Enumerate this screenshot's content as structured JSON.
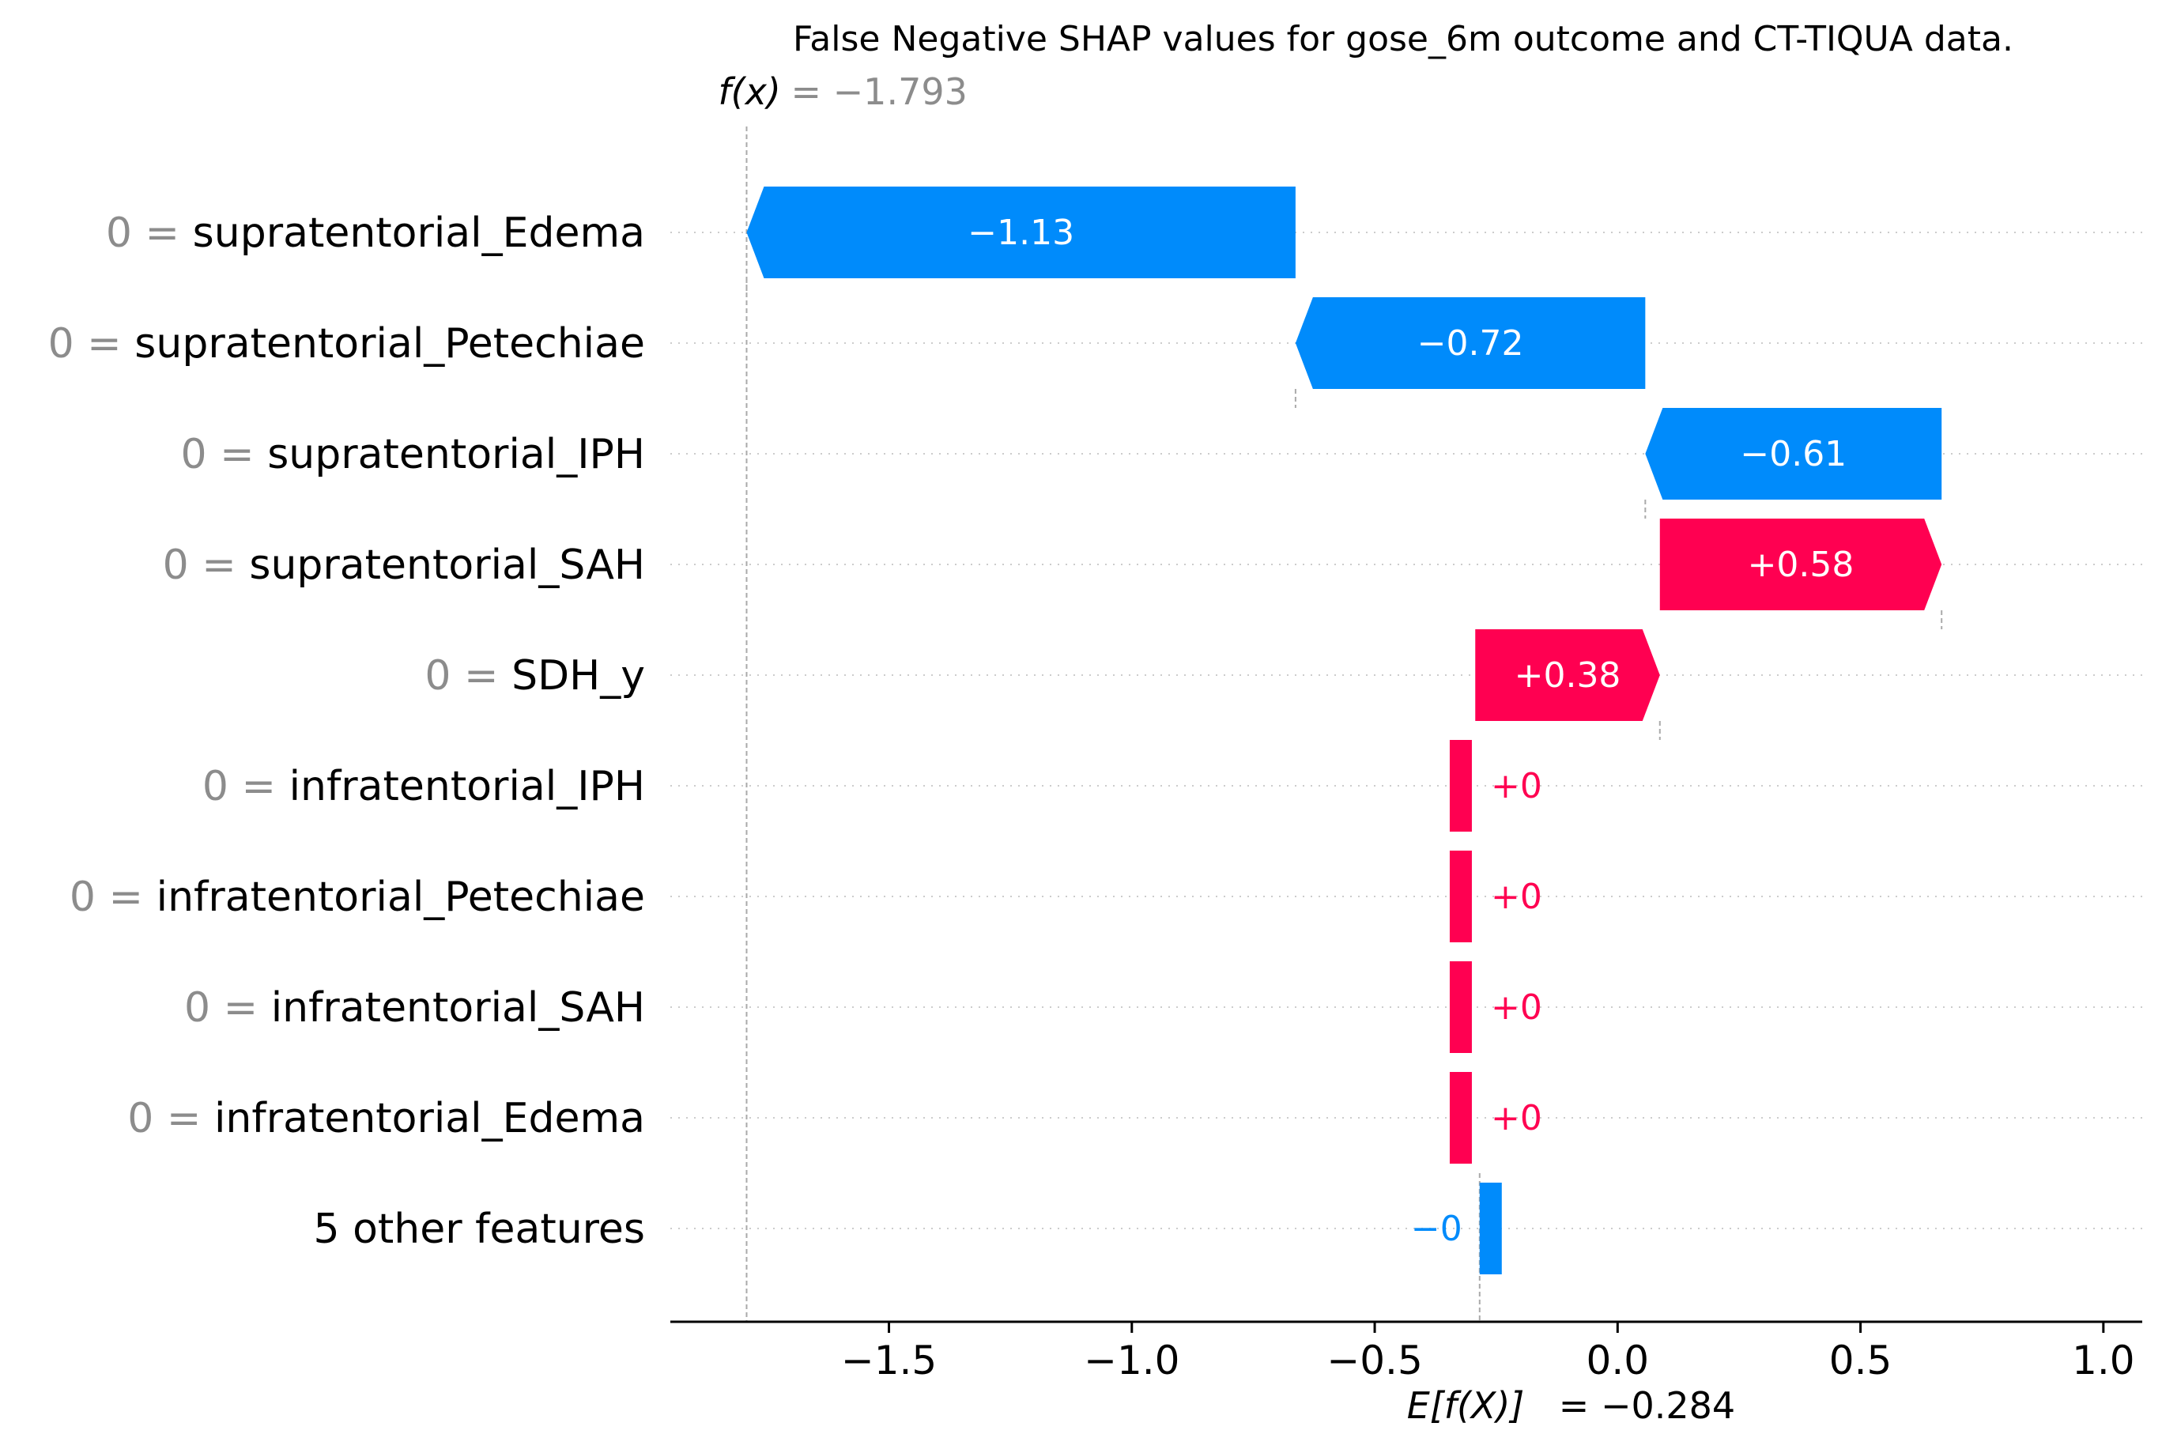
{
  "chart_data": {
    "type": "waterfall",
    "title": "False Negative SHAP values for gose_6m outcome and CT-TIQUA data.",
    "fx_label": "f(x)",
    "fx_value_text": "= −1.793",
    "fx_value": -1.793,
    "ef_label": "E[f(X)]",
    "ef_value_text": "= −0.284",
    "ef_value": -0.284,
    "xlim": [
      -1.95,
      1.08
    ],
    "xticks": [
      {
        "value": -1.5,
        "label": "−1.5"
      },
      {
        "value": -1.0,
        "label": "−1.0"
      },
      {
        "value": -0.5,
        "label": "−0.5"
      },
      {
        "value": 0.0,
        "label": "0.0"
      },
      {
        "value": 0.5,
        "label": "0.5"
      },
      {
        "value": 1.0,
        "label": "1.0"
      }
    ],
    "colors": {
      "positive": "#ff0051",
      "negative": "#008bfb",
      "axis": "#000000",
      "gridline": "#cccccc",
      "connector": "#aaaaaa"
    },
    "features": [
      {
        "value_text": "0 =",
        "name": "supratentorial_Edema",
        "start": -0.663,
        "end": -1.793,
        "label": "−1.13"
      },
      {
        "value_text": "0 =",
        "name": "supratentorial_Petechiae",
        "start": 0.057,
        "end": -0.663,
        "label": "−0.72"
      },
      {
        "value_text": "0 =",
        "name": "supratentorial_IPH",
        "start": 0.667,
        "end": 0.057,
        "label": "−0.61"
      },
      {
        "value_text": "0 =",
        "name": "supratentorial_SAH",
        "start": 0.087,
        "end": 0.667,
        "label": "+0.58"
      },
      {
        "value_text": "0 =",
        "name": "SDH_y",
        "start": -0.293,
        "end": 0.087,
        "label": "+0.38"
      },
      {
        "value_text": "0 =",
        "name": "infratentorial_IPH",
        "start": -0.3,
        "end": -0.3,
        "label": "+0"
      },
      {
        "value_text": "0 =",
        "name": "infratentorial_Petechiae",
        "start": -0.3,
        "end": -0.3,
        "label": "+0"
      },
      {
        "value_text": "0 =",
        "name": "infratentorial_SAH",
        "start": -0.3,
        "end": -0.3,
        "label": "+0"
      },
      {
        "value_text": "0 =",
        "name": "infratentorial_Edema",
        "start": -0.3,
        "end": -0.3,
        "label": "+0"
      },
      {
        "value_text": "",
        "name": "5 other features",
        "start": -0.284,
        "end": -0.284,
        "label": "−0"
      }
    ]
  }
}
